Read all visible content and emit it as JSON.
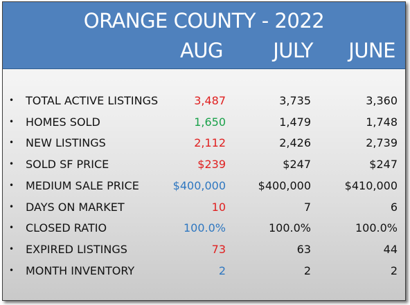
{
  "title": "ORANGE COUNTY - 2022",
  "columns": [
    "AUG",
    "JULY",
    "JUNE"
  ],
  "colors": {
    "header_bg": "#4f81bd",
    "red": "#e02020",
    "green": "#1aa14a",
    "blue": "#2f77c0",
    "text": "#111111"
  },
  "rows": [
    {
      "label": "TOTAL ACTIVE  LISTINGS",
      "aug": "3,487",
      "aug_color": "red",
      "july": "3,735",
      "june": "3,360"
    },
    {
      "label": "HOMES SOLD",
      "aug": "1,650",
      "aug_color": "green",
      "july": "1,479",
      "june": "1,748"
    },
    {
      "label": "NEW  LISTINGS",
      "aug": "2,112",
      "aug_color": "red",
      "july": "2,426",
      "june": "2,739"
    },
    {
      "label": "SOLD SF PRICE",
      "aug": "$239",
      "aug_color": "red",
      "july": "$247",
      "june": "$247"
    },
    {
      "label": "MEDIUM SALE PRICE",
      "aug": "$400,000",
      "aug_color": "blue",
      "july": "$400,000",
      "june": "$410,000"
    },
    {
      "label": "DAYS ON MARKET",
      "aug": "10",
      "aug_color": "red",
      "july": "7",
      "june": "6"
    },
    {
      "label": "CLOSED RATIO",
      "aug": "100.0%",
      "aug_color": "blue",
      "july": "100.0%",
      "june": "100.0%"
    },
    {
      "label": "EXPIRED  LISTINGS",
      "aug": "73",
      "aug_color": "red",
      "july": "63",
      "june": "44"
    },
    {
      "label": "MONTH INVENTORY",
      "aug": "2",
      "aug_color": "blue",
      "july": "2",
      "june": "2"
    }
  ]
}
